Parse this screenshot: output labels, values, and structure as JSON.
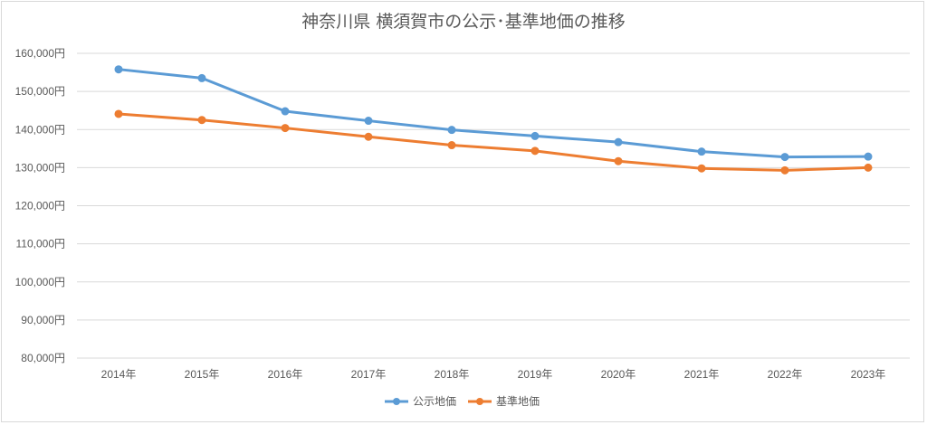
{
  "chart_data": {
    "type": "line",
    "title": "神奈川県 横須賀市の公示･基準地価の推移",
    "categories": [
      "2014年",
      "2015年",
      "2016年",
      "2017年",
      "2018年",
      "2019年",
      "2020年",
      "2021年",
      "2022年",
      "2023年"
    ],
    "ylim": [
      80000,
      160000
    ],
    "yticks": [
      80000,
      90000,
      100000,
      110000,
      120000,
      130000,
      140000,
      150000,
      160000
    ],
    "ytick_labels": [
      "80,000円",
      "90,000円",
      "100,000円",
      "110,000円",
      "120,000円",
      "130,000円",
      "140,000円",
      "150,000円",
      "160,000円"
    ],
    "grid": true,
    "legend_position": "bottom",
    "series": [
      {
        "name": "公示地価",
        "color": "#5b9bd5",
        "values": [
          155800,
          153500,
          144800,
          142300,
          139900,
          138300,
          136700,
          134200,
          132800,
          132900
        ]
      },
      {
        "name": "基準地価",
        "color": "#ed7d31",
        "values": [
          144100,
          142500,
          140400,
          138100,
          135900,
          134400,
          131700,
          129800,
          129300,
          130000
        ]
      }
    ]
  }
}
